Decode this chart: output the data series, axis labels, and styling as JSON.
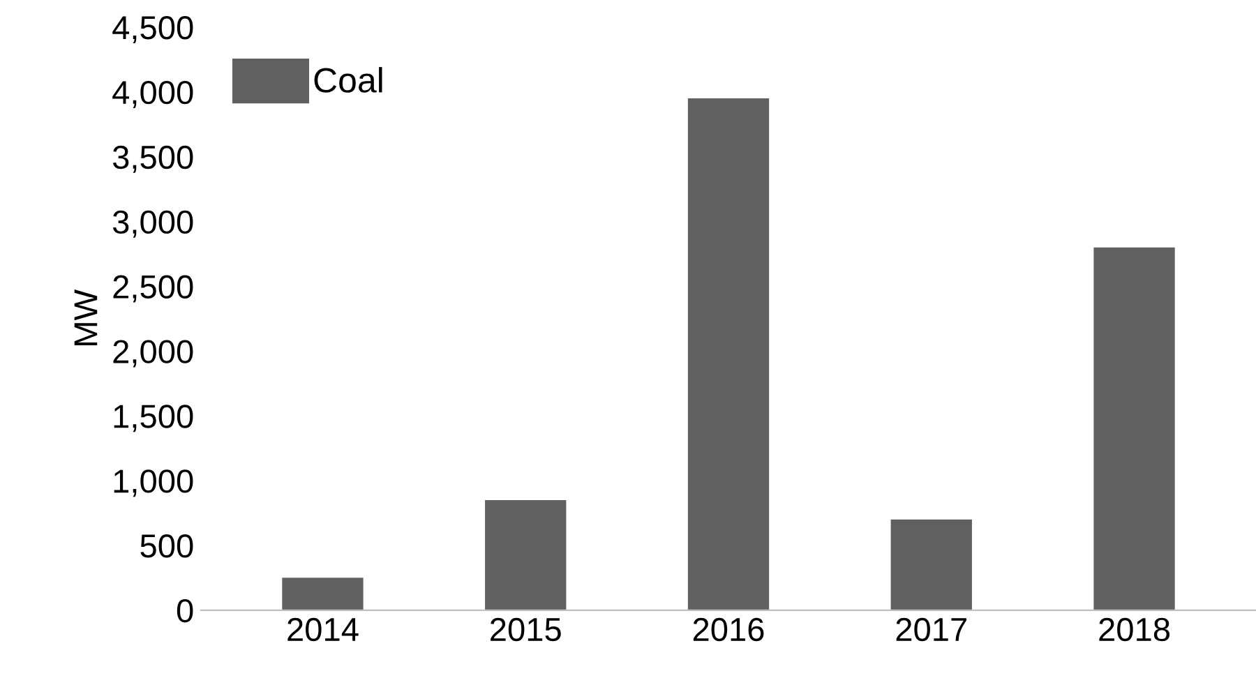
{
  "chart_data": {
    "type": "bar",
    "ylabel": "MW",
    "categories": [
      "2014",
      "2015",
      "2016",
      "2017",
      "2018"
    ],
    "series": [
      {
        "name": "Coal",
        "color": "#606060",
        "values": [
          250,
          850,
          3950,
          700,
          2800
        ]
      }
    ],
    "ylim": [
      0,
      4500
    ],
    "yticks": [
      {
        "value": 0,
        "label": "0"
      },
      {
        "value": 500,
        "label": "500"
      },
      {
        "value": 1000,
        "label": "1,000"
      },
      {
        "value": 1500,
        "label": "1,500"
      },
      {
        "value": 2000,
        "label": "2,000"
      },
      {
        "value": 2500,
        "label": "2,500"
      },
      {
        "value": 3000,
        "label": "3,000"
      },
      {
        "value": 3500,
        "label": "3,500"
      },
      {
        "value": 4000,
        "label": "4,000"
      },
      {
        "value": 4500,
        "label": "4,500"
      }
    ],
    "grid": false,
    "legend": "top left"
  }
}
